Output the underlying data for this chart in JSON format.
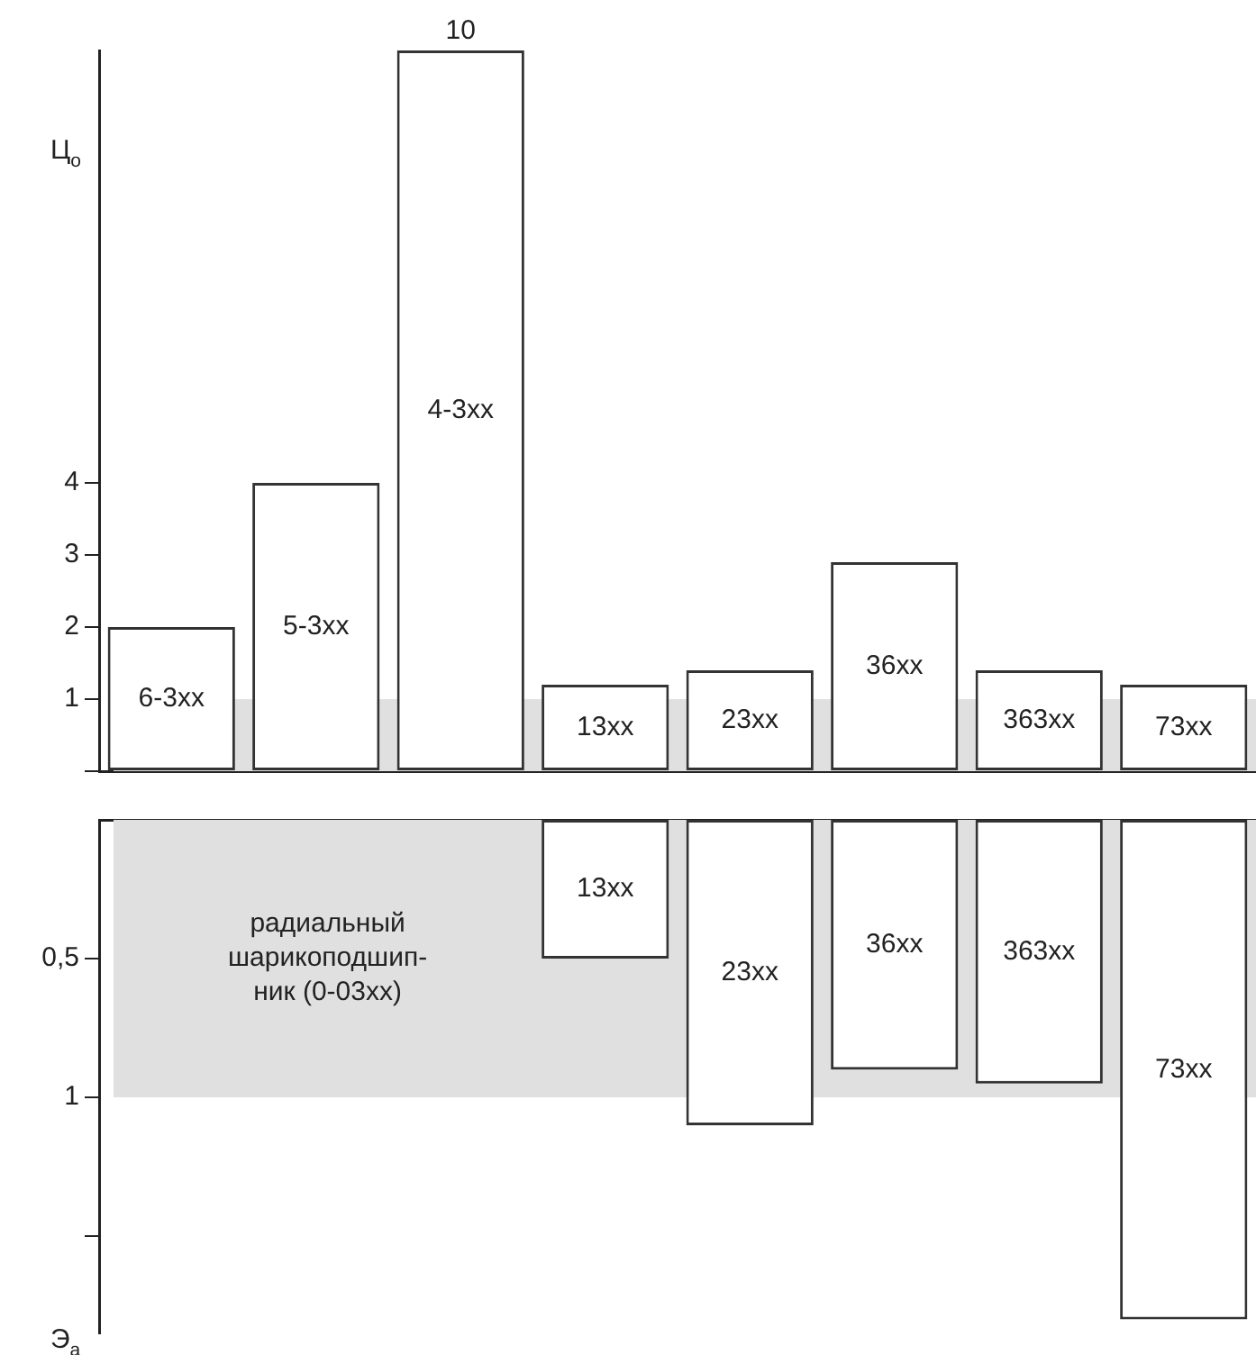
{
  "chart_data": [
    {
      "type": "bar",
      "ylabel": "Ц$_{о}$",
      "categories": [
        "6-3xx",
        "5-3xx",
        "4-3xx",
        "13xx",
        "23xx",
        "36xx",
        "363xx",
        "73xx"
      ],
      "series": [
        {
          "color": "#ffffff",
          "values": [
            2,
            4,
            10,
            1.2,
            1.4,
            2.9,
            1.4,
            1.2
          ],
          "value_labels": [
            null,
            null,
            "10",
            null,
            null,
            null,
            null,
            null
          ]
        }
      ],
      "ylim": [
        0,
        10
      ],
      "yticks": [
        {
          "value": 0,
          "label": null
        },
        1,
        2,
        3,
        4
      ],
      "bands": [
        {
          "axis": "y",
          "from": 0,
          "to": 1,
          "color": "#e0e0e0"
        }
      ]
    },
    {
      "type": "bar",
      "ylabel": "Э$_{а}$",
      "categories": [
        null,
        null,
        null,
        "13xx",
        "23xx",
        "36xx",
        "363xx",
        "73xx"
      ],
      "series": [
        {
          "color": "#ffffff",
          "values": [
            null,
            null,
            null,
            0.5,
            1.1,
            0.9,
            0.95,
            1.8
          ]
        }
      ],
      "ylim": [
        1.85,
        0
      ],
      "yticks": [
        {
          "value": 0.5,
          "label": "0,5"
        },
        1,
        {
          "value": 1.5,
          "label": null
        }
      ],
      "bands": [
        {
          "axis": "y",
          "from": 0,
          "to": 1,
          "color": "#e0e0e0",
          "label": "радиальный\nшарикоподшип-\nник (0-03xx)"
        }
      ]
    }
  ]
}
